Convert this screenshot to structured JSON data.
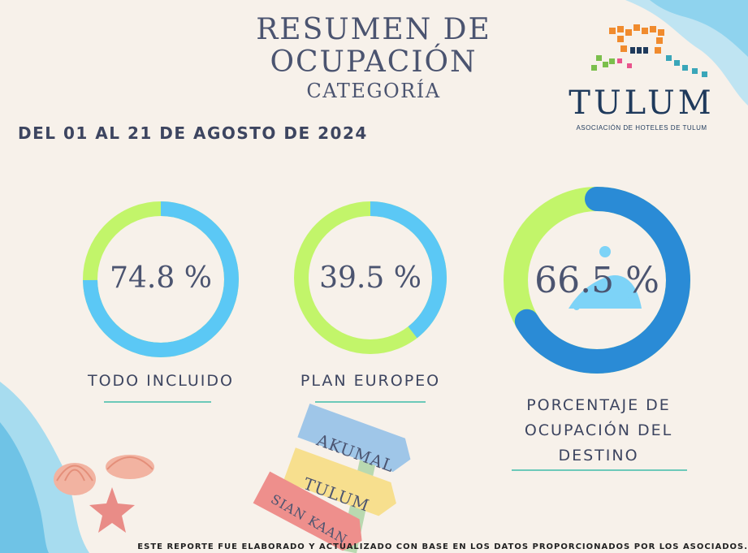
{
  "header": {
    "title_line1": "RESUMEN DE",
    "title_line2": "OCUPACIÓN",
    "subtitle": "CATEGORÍA",
    "date_range": "DEL 01 AL 21 DE AGOSTO DE 2024"
  },
  "logo": {
    "name": "TULUM",
    "tagline": "ASOCIACIÓN DE HOTELES DE TULUM"
  },
  "chart_data": [
    {
      "type": "pie",
      "variant": "donut",
      "label": "TODO INCLUIDO",
      "value_text": "74.8 %",
      "values": [
        74.8,
        25.2
      ],
      "colors": [
        "#5bc8f5",
        "#c2f56a"
      ]
    },
    {
      "type": "pie",
      "variant": "donut",
      "label": "PLAN EUROPEO",
      "value_text": "39.5 %",
      "values": [
        39.5,
        60.5
      ],
      "colors": [
        "#5bc8f5",
        "#c2f56a"
      ]
    },
    {
      "type": "pie",
      "variant": "donut",
      "label_lines": [
        "PORCENTAJE DE",
        "OCUPACIÓN DEL",
        "DESTINO"
      ],
      "value_text": "66.5 %",
      "values": [
        66.5,
        33.5
      ],
      "colors": [
        "#2a8bd6",
        "#c2f56a"
      ]
    }
  ],
  "signpost": {
    "signs": [
      "AKUMAL",
      "TULUM",
      "SIAN KAAN"
    ]
  },
  "footer": {
    "note": "ESTE REPORTE FUE ELABORADO Y ACTUALIZADO CON BASE EN LOS DATOS PROPORCIONADOS POR LOS ASOCIADOS."
  }
}
